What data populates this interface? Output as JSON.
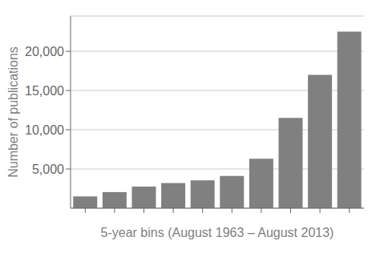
{
  "chart_data": {
    "type": "bar",
    "categories": [
      null,
      null,
      null,
      null,
      null,
      null,
      null,
      null,
      null,
      null
    ],
    "values": [
      1500,
      2050,
      2750,
      3200,
      3550,
      4100,
      6300,
      11500,
      17000,
      22500
    ],
    "color": "#808080",
    "xlabel": "5-year bins (August 1963 – August 2013)",
    "ylabel": "Number of publications",
    "ylim": [
      0,
      24500
    ],
    "yticks": [
      {
        "value": 5000,
        "label": "5,000"
      },
      {
        "value": 10000,
        "label": "10,000"
      },
      {
        "value": 15000,
        "label": "15,000"
      },
      {
        "value": 20000,
        "label": "20,000"
      }
    ],
    "grid": true,
    "tick_labels": "y"
  }
}
